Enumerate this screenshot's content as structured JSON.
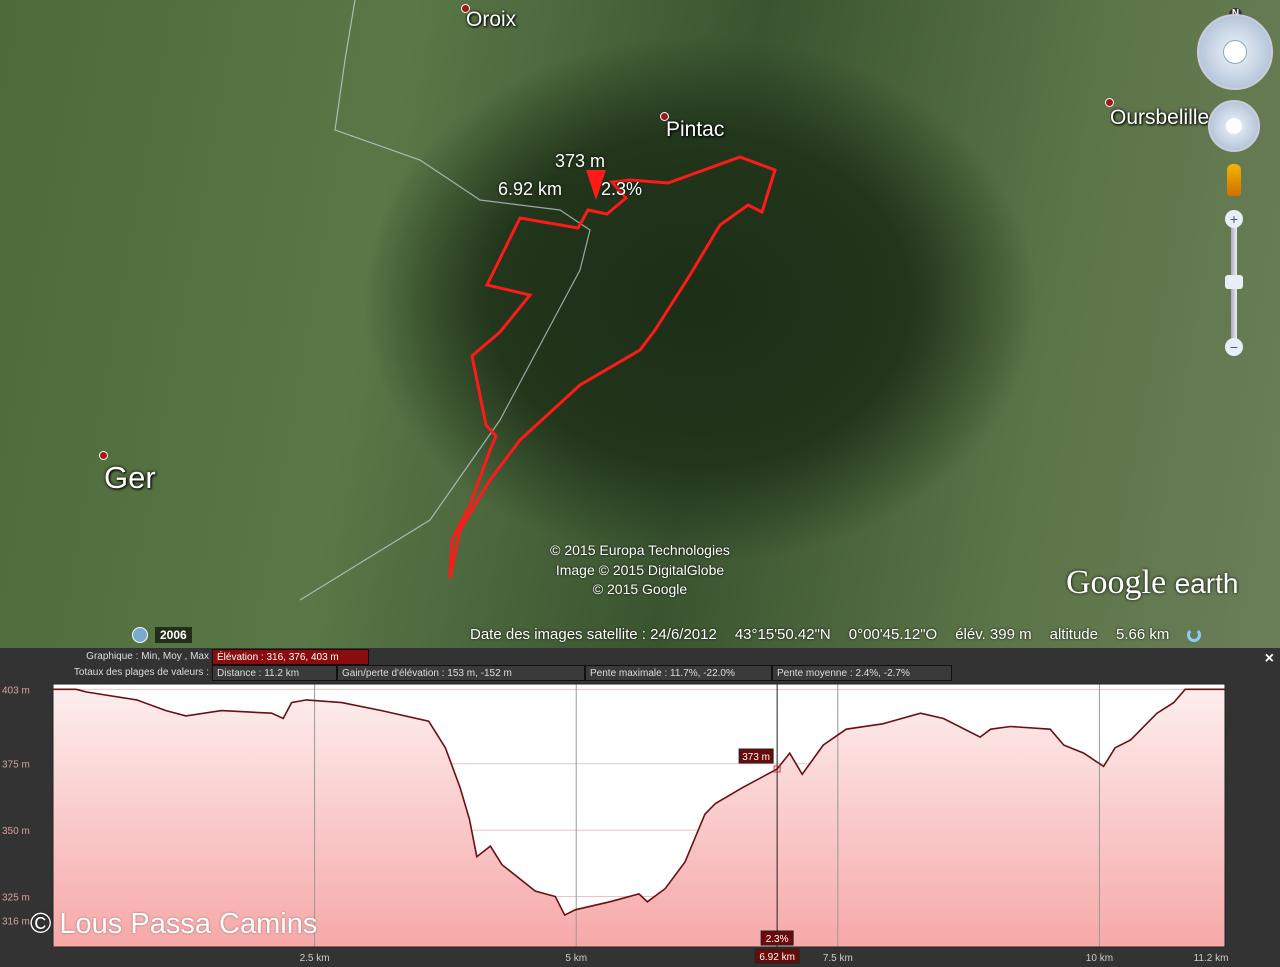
{
  "map": {
    "places": [
      "Oroix",
      "Pintac",
      "Oursbelille",
      "Ger"
    ],
    "marker": {
      "elevation": "373 m",
      "distance": "6.92 km",
      "slope": "2.3%"
    },
    "copyright": [
      "© 2015 Europa Technologies",
      "Image © 2015 DigitalGlobe",
      "© 2015 Google"
    ],
    "year": "2006",
    "logo": "Google earth",
    "compass": "N",
    "status": {
      "date": "Date des images satellite : 24/6/2012",
      "lat": "43°15'50.42\"N",
      "lon": "0°00'45.12\"O",
      "elev": "élév.  399 m",
      "alt_label": "altitude",
      "alt": "5.66 km"
    },
    "route_color": "#ff1a1a"
  },
  "panel": {
    "graph_label": "Graphique : Min, Moy , Max",
    "elevation": "Élévation : 316, 376, 403 m",
    "totals_label": "Totaux des plages de valeurs :",
    "distance": "Distance : 11.2 km",
    "gain": "Gain/perte d'élévation : 153 m, -152 m",
    "max_slope": "Pente maximale : 11.7%, -22.0%",
    "avg_slope": "Pente moyenne : 2.4%, -2.7%",
    "close": "×"
  },
  "watermark": "© Lous Passa Camins",
  "chart_data": {
    "type": "area",
    "xlim": [
      0,
      11.2
    ],
    "ylim": [
      306,
      405
    ],
    "yticks": [
      {
        "v": 403,
        "label": "403 m"
      },
      {
        "v": 375,
        "label": "375 m"
      },
      {
        "v": 350,
        "label": "350 m"
      },
      {
        "v": 325,
        "label": "325 m"
      },
      {
        "v": 316,
        "label": "316 m"
      }
    ],
    "xticks": [
      {
        "v": 2.5,
        "label": "2.5 km"
      },
      {
        "v": 5,
        "label": "5 km"
      },
      {
        "v": 7.5,
        "label": "7.5 km"
      },
      {
        "v": 10,
        "label": "10 km"
      },
      {
        "v": 11.2,
        "label": "11.2 km"
      }
    ],
    "cursor": {
      "x": 6.92,
      "y": 373,
      "xlabel": "6.92 km",
      "ylabel": "373 m",
      "slope": "2.3%"
    },
    "line_color": "#6b0f12",
    "fill_color": "#f7a8a8",
    "x": [
      0,
      0.22,
      0.32,
      0.8,
      1.08,
      1.27,
      1.61,
      2.09,
      2.2,
      2.28,
      2.42,
      2.76,
      3.14,
      3.59,
      3.75,
      3.89,
      3.98,
      4.05,
      4.18,
      4.29,
      4.61,
      4.8,
      4.89,
      4.99,
      5.32,
      5.6,
      5.68,
      5.85,
      6.04,
      6.23,
      6.33,
      6.59,
      6.92,
      7.04,
      7.16,
      7.36,
      7.58,
      7.93,
      8.29,
      8.51,
      8.86,
      8.96,
      9.15,
      9.53,
      9.66,
      9.85,
      10.04,
      10.15,
      10.3,
      10.55,
      10.71,
      10.82,
      11.2
    ],
    "y": [
      403,
      403,
      402,
      399,
      395,
      393,
      395,
      394,
      392,
      398,
      399,
      398,
      395,
      391,
      381,
      366,
      354,
      340,
      344,
      337,
      327,
      325,
      318,
      320,
      323,
      326,
      323,
      328,
      338,
      356,
      360,
      366,
      373,
      379,
      371,
      382,
      388,
      390,
      394,
      392,
      385,
      388,
      389,
      388,
      382,
      379,
      374,
      381,
      384,
      394,
      398,
      403,
      403
    ]
  }
}
